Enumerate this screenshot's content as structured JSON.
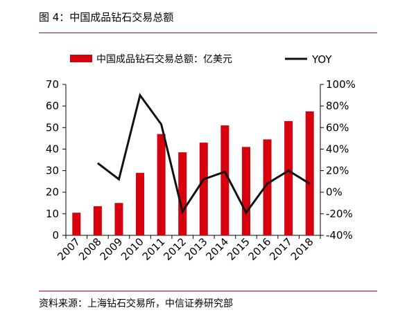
{
  "figure": {
    "title": "图 4：中国成品钻石交易总额",
    "source": "资料来源：上海钻石交易所，中信证券研究部"
  },
  "colors": {
    "bar": "#d7000f",
    "line": "#111111",
    "rule": "#c0001a"
  },
  "chart_data": {
    "type": "bar",
    "categories": [
      "2007",
      "2008",
      "2009",
      "2010",
      "2011",
      "2012",
      "2013",
      "2014",
      "2015",
      "2016",
      "2017",
      "2018"
    ],
    "series": [
      {
        "name": "中国成品钻石交易总额：亿美元",
        "type": "bar",
        "axis": "left",
        "values": [
          10.5,
          13.5,
          15.0,
          29.0,
          47.0,
          38.5,
          43.0,
          51.0,
          41.0,
          44.5,
          53.0,
          57.5
        ]
      },
      {
        "name": "YOY",
        "type": "line",
        "axis": "right",
        "values": [
          null,
          27,
          12,
          90,
          63,
          -18,
          12,
          19,
          -19,
          8,
          20,
          8
        ]
      }
    ],
    "y_left": {
      "min": 0,
      "max": 70,
      "ticks": [
        0,
        10,
        20,
        30,
        40,
        50,
        60,
        70
      ]
    },
    "y_right": {
      "min": -40,
      "max": 100,
      "ticks": [
        -40,
        -20,
        0,
        20,
        40,
        60,
        80,
        100
      ],
      "unit": "%"
    },
    "legend": "top",
    "grid": false
  }
}
